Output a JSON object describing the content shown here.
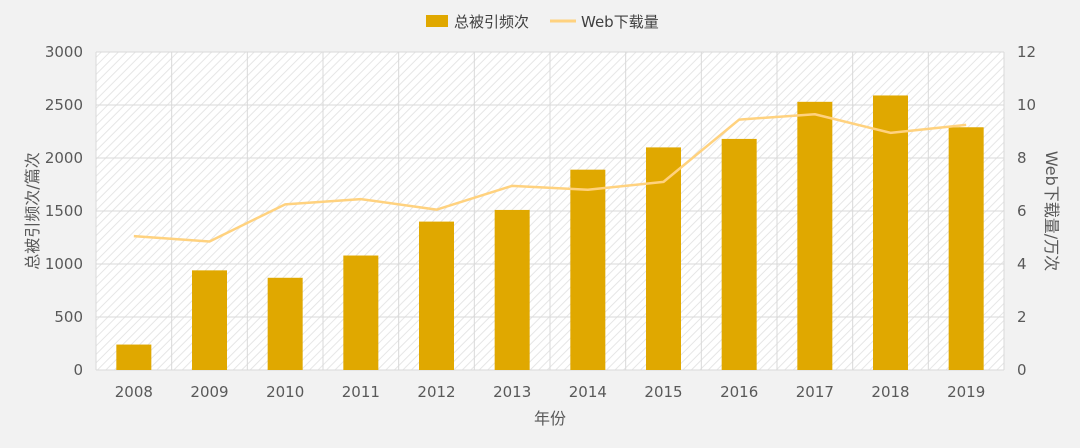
{
  "chart_data": {
    "type": "bar+line",
    "categories": [
      "2008",
      "2009",
      "2010",
      "2011",
      "2012",
      "2013",
      "2014",
      "2015",
      "2016",
      "2017",
      "2018",
      "2019"
    ],
    "series": [
      {
        "name": "总被引频次",
        "type": "bar",
        "axis": "left",
        "color": "#e0a800",
        "values": [
          240,
          940,
          870,
          1080,
          1400,
          1510,
          1890,
          2100,
          2180,
          2530,
          2590,
          2290
        ]
      },
      {
        "name": "Web下载量",
        "type": "line",
        "axis": "right",
        "color": "#ffd27f",
        "values": [
          5.05,
          4.85,
          6.25,
          6.45,
          6.05,
          6.95,
          6.8,
          7.1,
          9.45,
          9.65,
          8.95,
          9.25
        ]
      }
    ],
    "xlabel": "年份",
    "ylabel_left": "总被引频次/篇次",
    "ylabel_right": "Web下载量/万次",
    "ylim_left": [
      0,
      3000
    ],
    "ylim_right": [
      0,
      12
    ],
    "yticks_left": [
      "0",
      "500",
      "1000",
      "1500",
      "2000",
      "2500",
      "3000"
    ],
    "yticks_right": [
      "0",
      "2",
      "4",
      "6",
      "8",
      "10",
      "12"
    ],
    "grid": true,
    "legend_position": "top-center"
  }
}
